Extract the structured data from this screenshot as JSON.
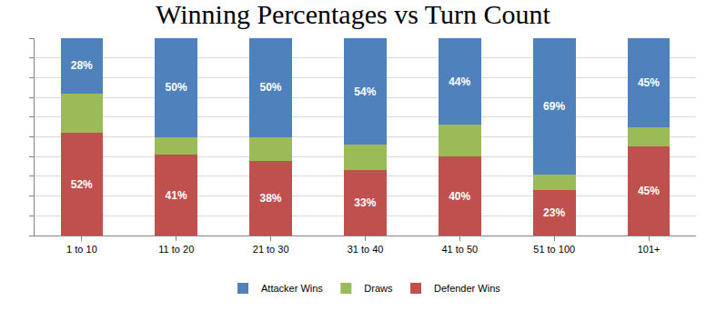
{
  "chart_data": {
    "type": "bar",
    "title": "Winning Percentages vs Turn Count",
    "stacked": true,
    "data_labels": true,
    "tick_labels": "x",
    "grid": true,
    "legend": "bottom",
    "categories": [
      "1 to 10",
      "11 to 20",
      "21 to 30",
      "31 to 40",
      "41 to 50",
      "51 to 100",
      "101+"
    ],
    "series": [
      {
        "name": "Defender Wins",
        "color": "#c0504d",
        "values": [
          52,
          41,
          38,
          33,
          40,
          23,
          45
        ],
        "value_labels": [
          "52%",
          "41%",
          "38%",
          "33%",
          "40%",
          "23%",
          "45%"
        ]
      },
      {
        "name": "Draws",
        "color": "#9bbb59",
        "values": [
          20,
          9,
          12,
          13,
          16,
          8,
          10
        ],
        "value_labels": [
          null,
          null,
          null,
          null,
          null,
          null,
          null
        ]
      },
      {
        "name": "Attacker Wins",
        "color": "#4f81bd",
        "values": [
          28,
          50,
          50,
          54,
          44,
          69,
          45
        ],
        "value_labels": [
          "28%",
          "50%",
          "50%",
          "54%",
          "44%",
          "69%",
          "45%"
        ]
      }
    ],
    "ylim": [
      0,
      100
    ],
    "yticks": [
      0,
      10,
      20,
      30,
      40,
      50,
      60,
      70,
      80,
      90,
      100
    ]
  }
}
